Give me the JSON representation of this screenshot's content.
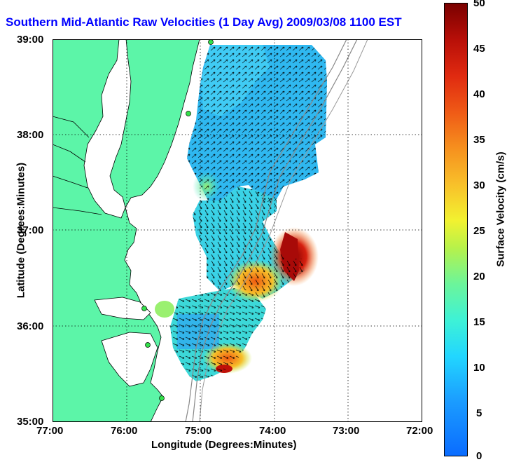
{
  "title": "Southern Mid-Atlantic Raw Velocities (1 Day Avg) 2009/03/08 1100 EST",
  "x_axis": {
    "label": "Longitude (Degrees:Minutes)",
    "ticks": [
      "77:00",
      "76:00",
      "75:00",
      "74:00",
      "73:00",
      "72:00"
    ]
  },
  "y_axis": {
    "label": "Latitude (Degrees:Minutes)",
    "ticks": [
      "39:00",
      "38:00",
      "37:00",
      "36:00",
      "35:00"
    ]
  },
  "colorbar": {
    "label": "Surface Velocity (cm/s)",
    "ticks": [
      "50",
      "45",
      "40",
      "35",
      "30",
      "25",
      "20",
      "15",
      "10",
      "5",
      "0"
    ],
    "range": [
      0,
      50
    ]
  },
  "map": {
    "land_color": "#5cf5a8",
    "water_color": "#ffffff",
    "grid": "dotted",
    "extent": {
      "lon": [
        -77,
        -72
      ],
      "lat": [
        35,
        39
      ]
    },
    "stations": 5
  }
}
